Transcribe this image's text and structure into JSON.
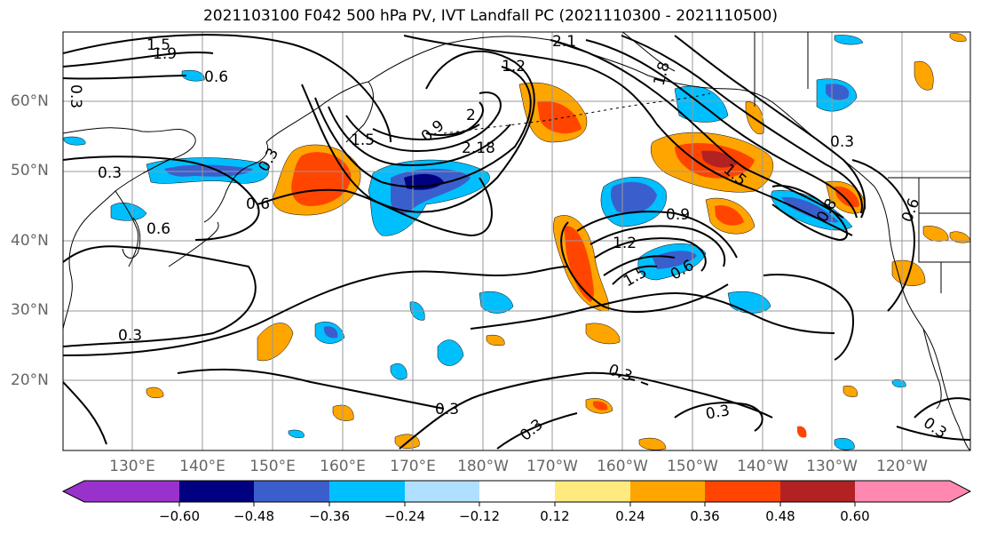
{
  "title": "2021103100 F042 500 hPa PV, IVT Landfall PC (2021110300 - 2021110500)",
  "lat_labels": [
    "60°N",
    "50°N",
    "40°N",
    "30°N",
    "20°N"
  ],
  "lon_labels": [
    "130°E",
    "140°E",
    "150°E",
    "160°E",
    "170°E",
    "180°W",
    "170°W",
    "160°W",
    "150°W",
    "140°W",
    "130°W",
    "120°W"
  ],
  "contour_labels": [
    "1.5",
    "1.9",
    "0.6",
    "0.3",
    "2.1",
    "1.2",
    "1.8",
    "0.9",
    "1.5",
    "2",
    "2.18",
    "0.3",
    "0.6",
    "0.6",
    "0.3",
    "0.9",
    "1.2",
    "1.5",
    "0.6",
    "1.5",
    "0.3",
    "0.8",
    "0.6",
    "0.3",
    "0.3",
    "0.3",
    "0.3",
    "0.3",
    "0.3"
  ],
  "colorbar": {
    "ticks": [
      "−0.60",
      "−0.48",
      "−0.36",
      "−0.24",
      "−0.12",
      "0.12",
      "0.24",
      "0.36",
      "0.48",
      "0.60"
    ],
    "colors": [
      "#9932cc",
      "#000080",
      "#3a5fcd",
      "#00bfff",
      "#b0e0ff",
      "#ffffff",
      "#ffea80",
      "#ffa500",
      "#ff4500",
      "#b22222",
      "#ff88b0"
    ]
  },
  "colors": {
    "neg_strong": "#000080",
    "neg_mid": "#3a5fcd",
    "neg_light": "#00bfff",
    "neg_pale": "#b0e0ff",
    "pos_pale": "#ffea80",
    "pos_mid": "#ffa500",
    "pos_strong": "#ff4500",
    "pos_max": "#b22222"
  }
}
